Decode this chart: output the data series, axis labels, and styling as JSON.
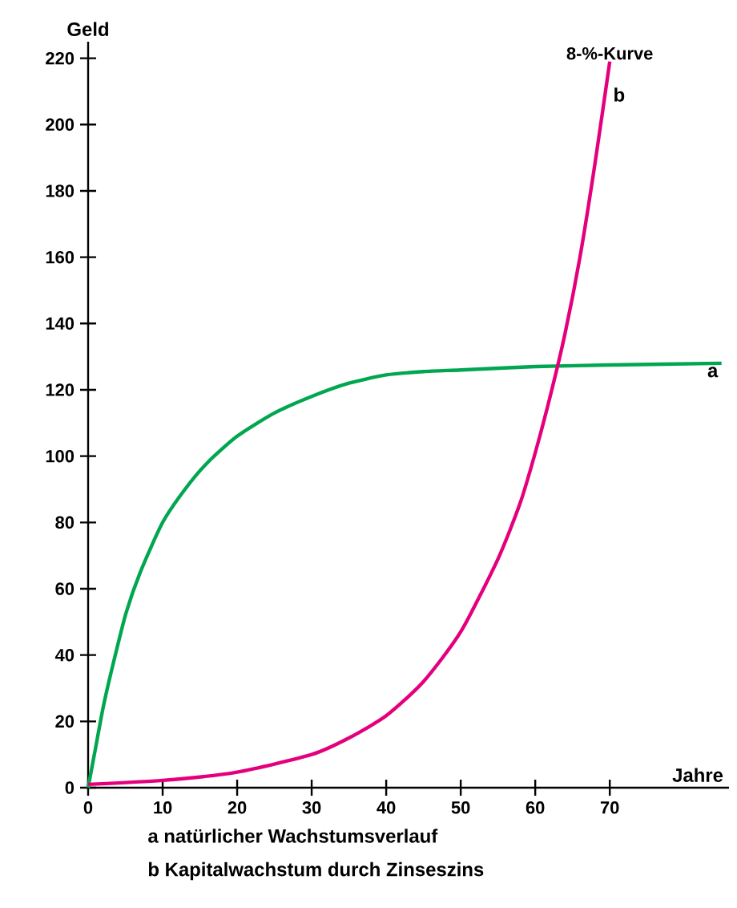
{
  "chart_data": {
    "type": "line",
    "xlabel": "Jahre",
    "ylabel": "Geld",
    "xlim": [
      0,
      86
    ],
    "ylim": [
      0,
      225
    ],
    "xticks": [
      0,
      10,
      20,
      30,
      40,
      50,
      60,
      70
    ],
    "yticks": [
      0,
      20,
      40,
      60,
      80,
      100,
      120,
      140,
      160,
      180,
      200,
      220
    ],
    "grid": false,
    "marker": "none",
    "line_style": "solid",
    "series": [
      {
        "name": "a",
        "color": "#00a650",
        "x": [
          0,
          1,
          2,
          3,
          5,
          7,
          10,
          13,
          16,
          20,
          25,
          30,
          35,
          40,
          45,
          50,
          60,
          70,
          85
        ],
        "values": [
          0,
          12,
          24,
          34,
          52,
          65,
          80,
          90,
          98,
          106,
          113,
          118,
          122,
          124.5,
          125.5,
          126,
          127,
          127.5,
          128
        ]
      },
      {
        "name": "b",
        "color": "#e4007c",
        "x": [
          0,
          10,
          20,
          30,
          35,
          40,
          45,
          50,
          55,
          58,
          60,
          62,
          64,
          66,
          68,
          70
        ],
        "values": [
          1,
          2.2,
          4.7,
          10,
          15,
          21.7,
          32,
          47,
          69,
          86,
          101,
          118,
          137,
          160,
          188,
          219
        ]
      }
    ],
    "annotations": [
      "8-%-Kurve",
      "a natürlicher Wachstumsverlauf",
      "b Kapitalwachstum durch Zinseszins"
    ]
  }
}
